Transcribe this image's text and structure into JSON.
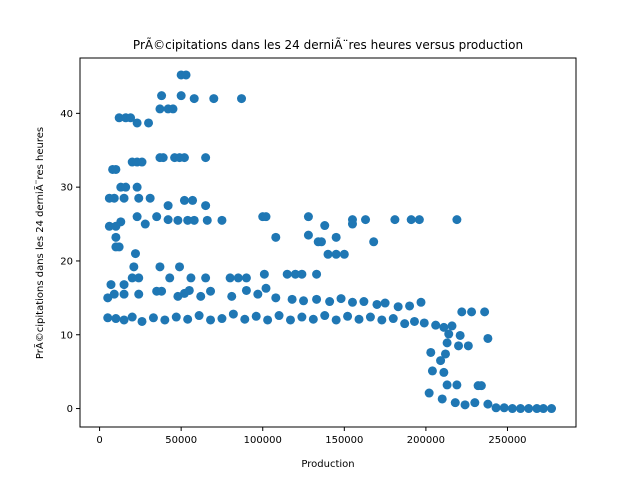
{
  "chart_data": {
    "type": "scatter",
    "title": "PrÃ©cipitations dans les 24 derniÃ¨res heures versus production",
    "xlabel": "Production",
    "ylabel": "PrÃ©cipitations dans les 24 derniÃ¨res heures",
    "xlim": [
      -12000,
      292000
    ],
    "ylim": [
      -2.5,
      47.5
    ],
    "xticks": [
      0,
      50000,
      100000,
      150000,
      200000,
      250000
    ],
    "yticks": [
      0,
      10,
      20,
      30,
      40
    ],
    "grid": false,
    "legend": "none",
    "series": [
      {
        "color": "#1f77b4",
        "points": [
          [
            50000,
            45.2
          ],
          [
            53000,
            45.2
          ],
          [
            38000,
            42.4
          ],
          [
            50000,
            42.4
          ],
          [
            58000,
            42.0
          ],
          [
            70000,
            42.0
          ],
          [
            87000,
            42.0
          ],
          [
            37000,
            40.6
          ],
          [
            42000,
            40.6
          ],
          [
            45000,
            40.6
          ],
          [
            12000,
            39.4
          ],
          [
            16000,
            39.4
          ],
          [
            19000,
            39.4
          ],
          [
            23000,
            38.7
          ],
          [
            30000,
            38.7
          ],
          [
            37000,
            34.0
          ],
          [
            39000,
            34.0
          ],
          [
            46000,
            34.0
          ],
          [
            49000,
            34.0
          ],
          [
            52000,
            34.0
          ],
          [
            65000,
            34.0
          ],
          [
            20000,
            33.4
          ],
          [
            23000,
            33.4
          ],
          [
            26000,
            33.4
          ],
          [
            8000,
            32.4
          ],
          [
            10000,
            32.4
          ],
          [
            13000,
            30.0
          ],
          [
            16000,
            30.0
          ],
          [
            23000,
            30.0
          ],
          [
            6000,
            28.5
          ],
          [
            9000,
            28.5
          ],
          [
            15000,
            28.5
          ],
          [
            24000,
            28.5
          ],
          [
            31000,
            28.5
          ],
          [
            52000,
            28.2
          ],
          [
            57000,
            28.2
          ],
          [
            42000,
            27.5
          ],
          [
            65000,
            27.5
          ],
          [
            128000,
            26.0
          ],
          [
            100000,
            26.0
          ],
          [
            102000,
            26.0
          ],
          [
            23000,
            26.0
          ],
          [
            35000,
            26.0
          ],
          [
            42000,
            25.6
          ],
          [
            48000,
            25.5
          ],
          [
            54000,
            25.5
          ],
          [
            58000,
            25.5
          ],
          [
            66000,
            25.5
          ],
          [
            75000,
            25.5
          ],
          [
            155000,
            25.6
          ],
          [
            163000,
            25.6
          ],
          [
            181000,
            25.6
          ],
          [
            191000,
            25.6
          ],
          [
            196000,
            25.6
          ],
          [
            219000,
            25.6
          ],
          [
            13000,
            25.3
          ],
          [
            28000,
            25.0
          ],
          [
            155000,
            25.0
          ],
          [
            138000,
            24.8
          ],
          [
            6000,
            24.7
          ],
          [
            10000,
            24.7
          ],
          [
            128000,
            23.5
          ],
          [
            10000,
            23.2
          ],
          [
            108000,
            23.2
          ],
          [
            145000,
            23.2
          ],
          [
            134000,
            22.6
          ],
          [
            136000,
            22.6
          ],
          [
            168000,
            22.6
          ],
          [
            10000,
            21.9
          ],
          [
            12000,
            21.9
          ],
          [
            22000,
            21.0
          ],
          [
            140000,
            20.9
          ],
          [
            145000,
            20.9
          ],
          [
            150000,
            20.9
          ],
          [
            21000,
            19.2
          ],
          [
            37000,
            19.2
          ],
          [
            49000,
            19.2
          ],
          [
            24000,
            17.7
          ],
          [
            20000,
            17.7
          ],
          [
            43000,
            17.7
          ],
          [
            56000,
            17.7
          ],
          [
            65000,
            17.7
          ],
          [
            80000,
            17.7
          ],
          [
            85000,
            17.7
          ],
          [
            90000,
            17.7
          ],
          [
            101000,
            18.2
          ],
          [
            115000,
            18.2
          ],
          [
            120000,
            18.2
          ],
          [
            124000,
            18.2
          ],
          [
            133000,
            18.2
          ],
          [
            7000,
            16.8
          ],
          [
            15000,
            16.8
          ],
          [
            5000,
            15.0
          ],
          [
            9000,
            15.5
          ],
          [
            15000,
            15.5
          ],
          [
            24000,
            15.5
          ],
          [
            35000,
            15.9
          ],
          [
            38000,
            15.9
          ],
          [
            48000,
            15.2
          ],
          [
            52000,
            15.6
          ],
          [
            55000,
            16.0
          ],
          [
            62000,
            15.2
          ],
          [
            68000,
            15.9
          ],
          [
            81000,
            15.2
          ],
          [
            90000,
            16.0
          ],
          [
            97000,
            15.5
          ],
          [
            102000,
            16.3
          ],
          [
            108000,
            15.0
          ],
          [
            118000,
            14.8
          ],
          [
            125000,
            14.6
          ],
          [
            133000,
            14.8
          ],
          [
            141000,
            14.5
          ],
          [
            148000,
            14.9
          ],
          [
            155000,
            14.4
          ],
          [
            162000,
            14.5
          ],
          [
            170000,
            14.1
          ],
          [
            175000,
            14.3
          ],
          [
            183000,
            13.8
          ],
          [
            190000,
            13.9
          ],
          [
            197000,
            14.4
          ],
          [
            5000,
            12.3
          ],
          [
            10000,
            12.2
          ],
          [
            15000,
            12.0
          ],
          [
            20000,
            12.4
          ],
          [
            26000,
            11.8
          ],
          [
            33000,
            12.3
          ],
          [
            40000,
            12.0
          ],
          [
            47000,
            12.4
          ],
          [
            54000,
            12.1
          ],
          [
            61000,
            12.6
          ],
          [
            68000,
            12.0
          ],
          [
            75000,
            12.2
          ],
          [
            82000,
            12.8
          ],
          [
            89000,
            12.1
          ],
          [
            96000,
            12.5
          ],
          [
            103000,
            12.0
          ],
          [
            110000,
            12.6
          ],
          [
            117000,
            12.0
          ],
          [
            124000,
            12.4
          ],
          [
            131000,
            12.1
          ],
          [
            138000,
            12.6
          ],
          [
            145000,
            12.0
          ],
          [
            152000,
            12.5
          ],
          [
            159000,
            12.1
          ],
          [
            166000,
            12.4
          ],
          [
            173000,
            12.0
          ],
          [
            180000,
            12.2
          ],
          [
            187000,
            11.5
          ],
          [
            193000,
            11.8
          ],
          [
            199000,
            11.6
          ],
          [
            206000,
            11.3
          ],
          [
            211000,
            11.0
          ],
          [
            216000,
            11.2
          ],
          [
            222000,
            13.1
          ],
          [
            228000,
            13.1
          ],
          [
            236000,
            13.1
          ],
          [
            214000,
            10.1
          ],
          [
            221000,
            9.9
          ],
          [
            238000,
            9.5
          ],
          [
            213000,
            8.9
          ],
          [
            220000,
            8.5
          ],
          [
            226000,
            8.5
          ],
          [
            203000,
            7.6
          ],
          [
            212000,
            7.4
          ],
          [
            209000,
            6.5
          ],
          [
            204000,
            5.1
          ],
          [
            211000,
            4.9
          ],
          [
            213000,
            3.2
          ],
          [
            219000,
            3.2
          ],
          [
            232000,
            3.1
          ],
          [
            234000,
            3.1
          ],
          [
            202000,
            2.1
          ],
          [
            210000,
            1.3
          ],
          [
            218000,
            0.8
          ],
          [
            224000,
            0.5
          ],
          [
            230000,
            0.8
          ],
          [
            238000,
            0.6
          ],
          [
            243000,
            0.1
          ],
          [
            248000,
            0.1
          ],
          [
            253000,
            0.0
          ],
          [
            258000,
            0.0
          ],
          [
            263000,
            0.0
          ],
          [
            268000,
            0.0
          ],
          [
            272000,
            0.0
          ],
          [
            277000,
            0.0
          ]
        ]
      }
    ]
  }
}
